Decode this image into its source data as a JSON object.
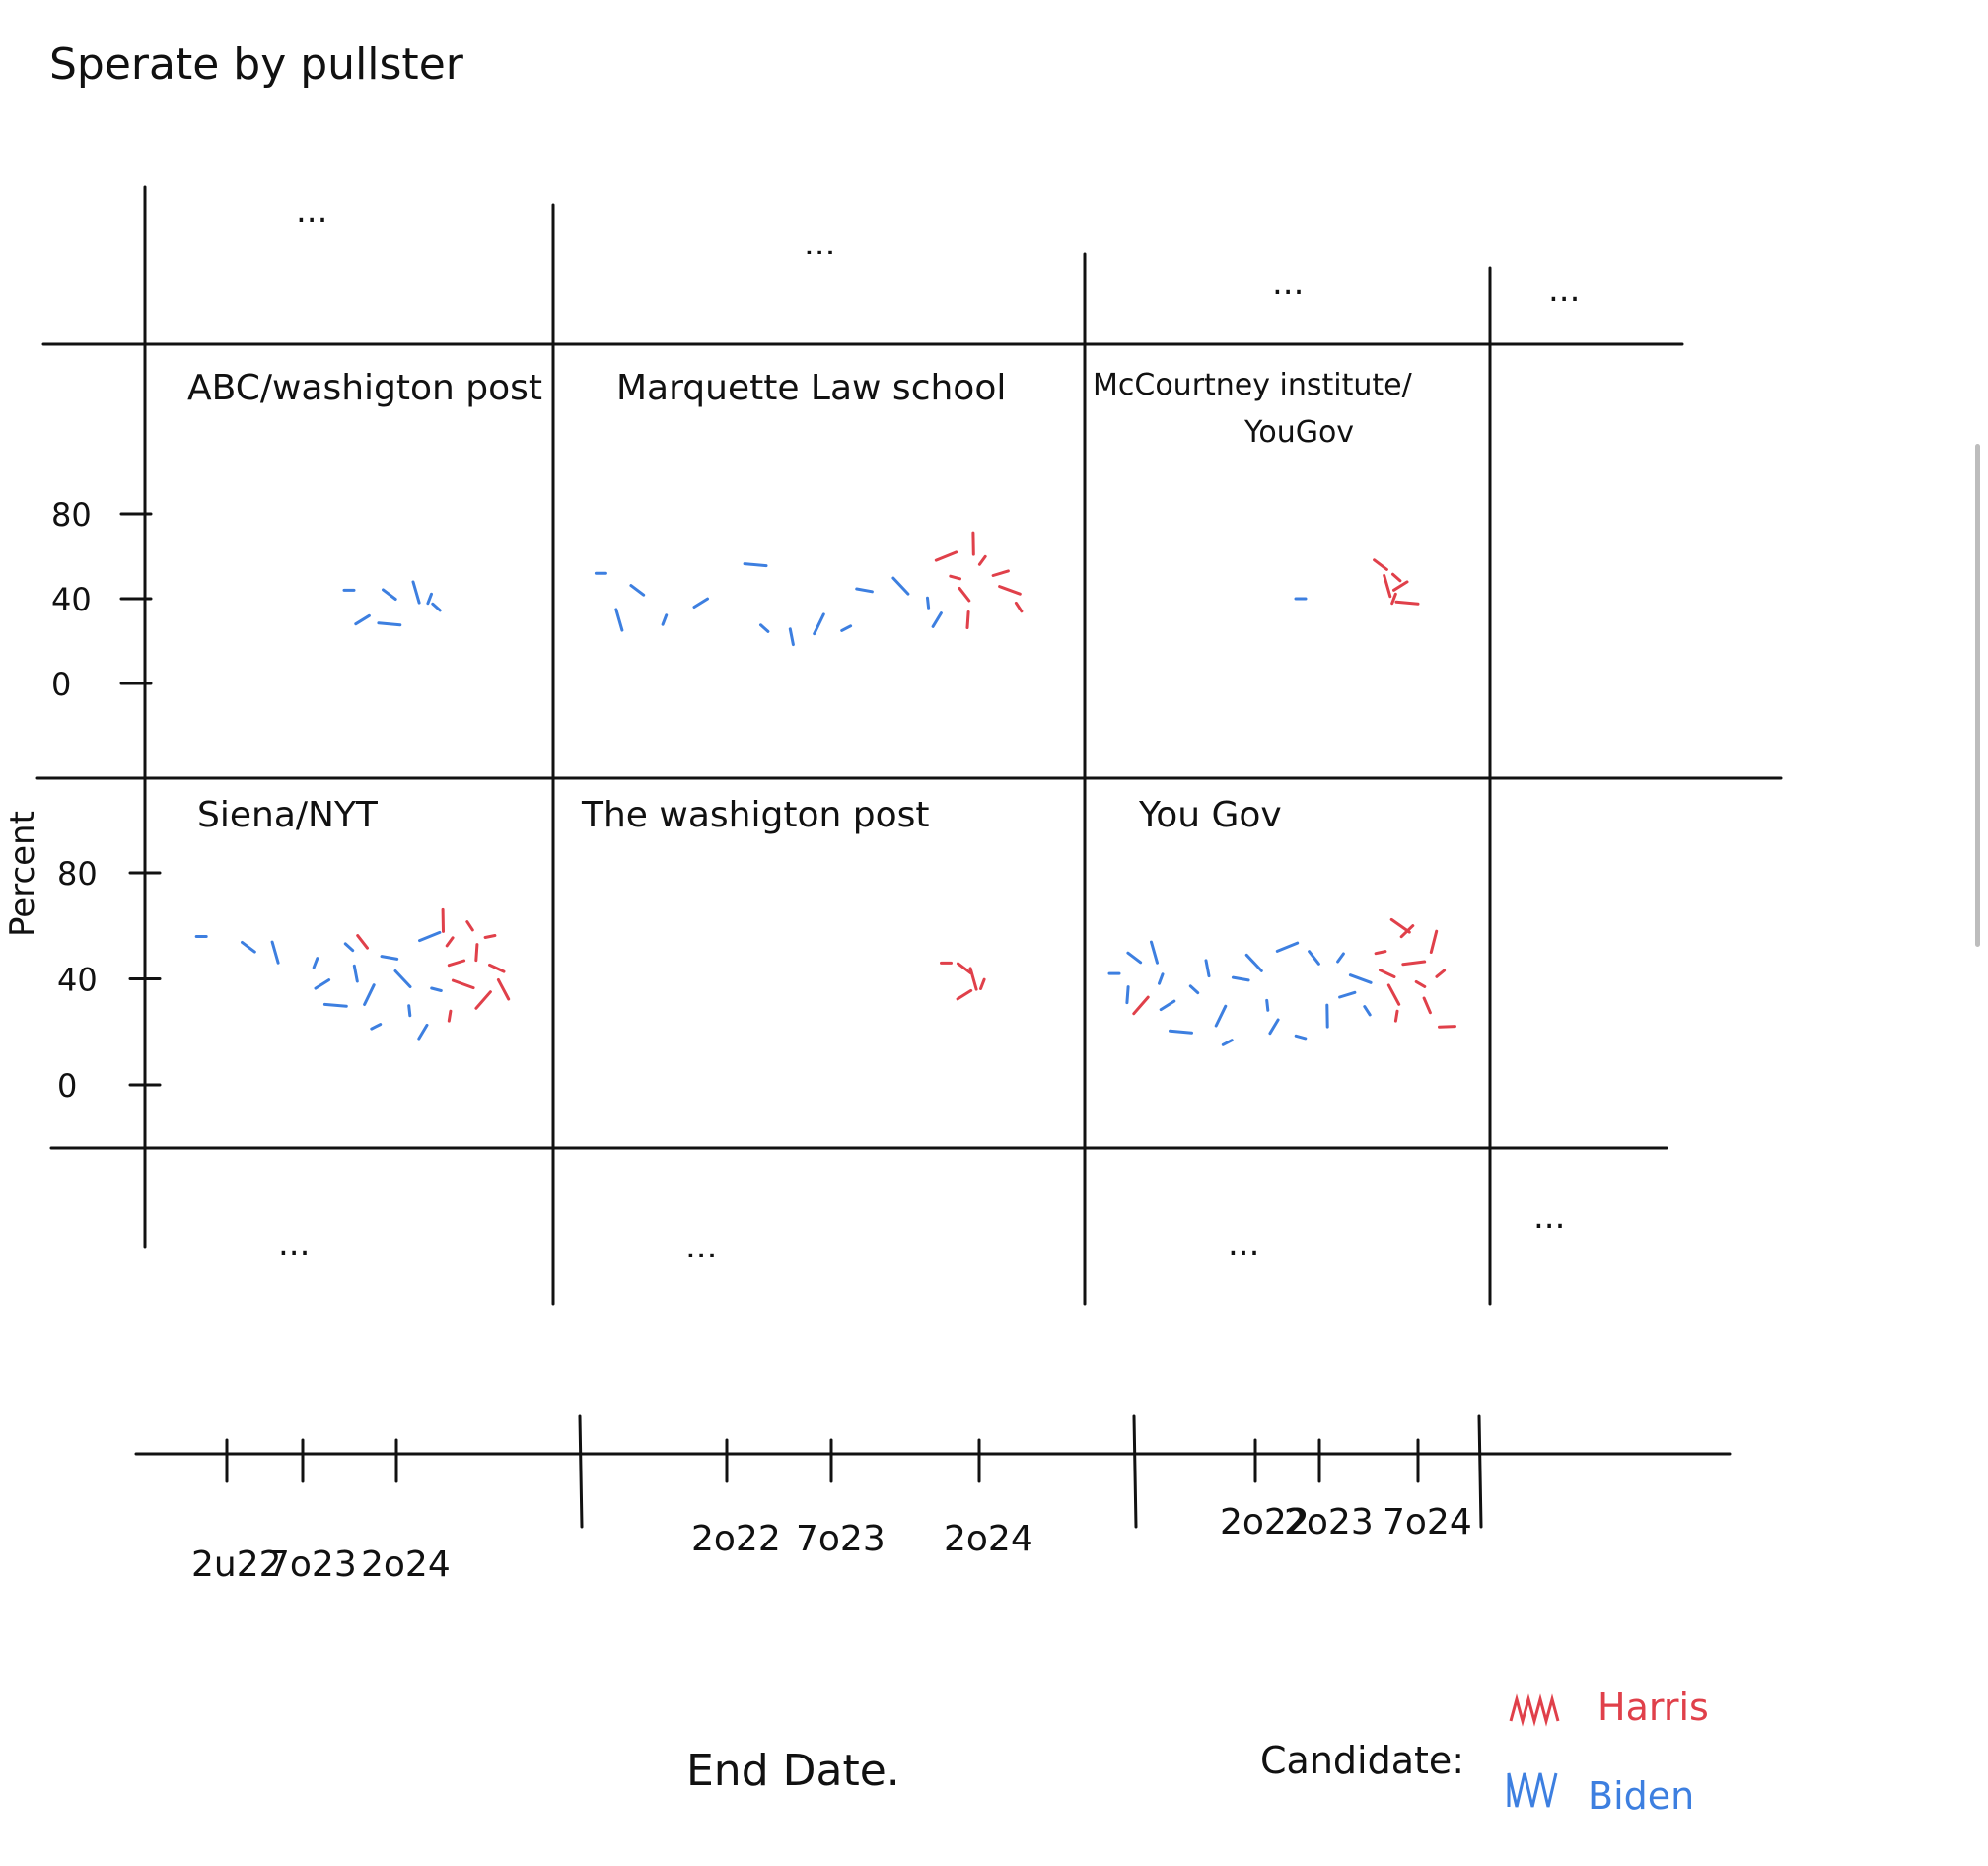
{
  "title": "Sperate by pullster",
  "colors": {
    "harris": "#e0404a",
    "biden": "#3d7fe0",
    "ink": "#111111"
  },
  "chart_data": {
    "type": "scatter",
    "facet_by": "pollster",
    "title": "Sperate by pullster",
    "xlabel": "End Date.",
    "ylabel": "Percent",
    "y_ticks": [
      "80",
      "40",
      "0"
    ],
    "x_ticks": [
      "2022",
      "2023",
      "2024"
    ],
    "x_tick_sets": [
      [
        "2u22",
        "7o23",
        "2o24"
      ],
      [
        "2o22",
        "7o23",
        "2o24"
      ],
      [
        "2o22",
        "2o23",
        "7o24"
      ]
    ],
    "legend": {
      "title": "Candidate:",
      "placement": "bottom-right",
      "entries": [
        {
          "name": "Harris",
          "color": "#e0404a"
        },
        {
          "name": "Biden",
          "color": "#3d7fe0"
        }
      ]
    },
    "ellipsis": "...",
    "panels": [
      {
        "pollster": "ABC/washigton post",
        "points": [
          {
            "c": "Biden",
            "x": 2023.3,
            "y": 44
          },
          {
            "c": "Biden",
            "x": 2023.6,
            "y": 42
          },
          {
            "c": "Biden",
            "x": 2023.8,
            "y": 43
          },
          {
            "c": "Biden",
            "x": 2023.9,
            "y": 40
          },
          {
            "c": "Biden",
            "x": 2023.4,
            "y": 30
          },
          {
            "c": "Biden",
            "x": 2023.6,
            "y": 28
          },
          {
            "c": "Biden",
            "x": 2023.95,
            "y": 36
          }
        ]
      },
      {
        "pollster": "Marquette Law school",
        "points": [
          {
            "c": "Biden",
            "x": 2022.1,
            "y": 52
          },
          {
            "c": "Biden",
            "x": 2022.3,
            "y": 44
          },
          {
            "c": "Biden",
            "x": 2022.2,
            "y": 30
          },
          {
            "c": "Biden",
            "x": 2022.45,
            "y": 30
          },
          {
            "c": "Biden",
            "x": 2022.65,
            "y": 38
          },
          {
            "c": "Biden",
            "x": 2022.95,
            "y": 56
          },
          {
            "c": "Biden",
            "x": 2023.0,
            "y": 26
          },
          {
            "c": "Biden",
            "x": 2023.15,
            "y": 22
          },
          {
            "c": "Biden",
            "x": 2023.3,
            "y": 28
          },
          {
            "c": "Biden",
            "x": 2023.45,
            "y": 26
          },
          {
            "c": "Biden",
            "x": 2023.55,
            "y": 44
          },
          {
            "c": "Biden",
            "x": 2023.75,
            "y": 46
          },
          {
            "c": "Biden",
            "x": 2023.9,
            "y": 38
          },
          {
            "c": "Biden",
            "x": 2023.95,
            "y": 30
          },
          {
            "c": "Harris",
            "x": 2024.0,
            "y": 60
          },
          {
            "c": "Harris",
            "x": 2024.05,
            "y": 50
          },
          {
            "c": "Harris",
            "x": 2024.1,
            "y": 42
          },
          {
            "c": "Harris",
            "x": 2024.15,
            "y": 66
          },
          {
            "c": "Harris",
            "x": 2024.2,
            "y": 58
          },
          {
            "c": "Harris",
            "x": 2024.3,
            "y": 52
          },
          {
            "c": "Harris",
            "x": 2024.35,
            "y": 44
          },
          {
            "c": "Harris",
            "x": 2024.4,
            "y": 36
          },
          {
            "c": "Harris",
            "x": 2024.12,
            "y": 30
          }
        ]
      },
      {
        "pollster": "McCourtney institute/ YouGov",
        "points": [
          {
            "c": "Biden",
            "x": 2023.4,
            "y": 40
          },
          {
            "c": "Harris",
            "x": 2024.0,
            "y": 56
          },
          {
            "c": "Harris",
            "x": 2024.05,
            "y": 46
          },
          {
            "c": "Harris",
            "x": 2024.1,
            "y": 40
          },
          {
            "c": "Harris",
            "x": 2024.15,
            "y": 46
          },
          {
            "c": "Harris",
            "x": 2024.2,
            "y": 38
          },
          {
            "c": "Harris",
            "x": 2024.12,
            "y": 50
          }
        ]
      },
      {
        "pollster": "Siena/NYT",
        "points": [
          {
            "c": "Biden",
            "x": 2022.2,
            "y": 56
          },
          {
            "c": "Biden",
            "x": 2022.55,
            "y": 52
          },
          {
            "c": "Biden",
            "x": 2022.75,
            "y": 50
          },
          {
            "c": "Biden",
            "x": 2023.05,
            "y": 46
          },
          {
            "c": "Biden",
            "x": 2023.1,
            "y": 38
          },
          {
            "c": "Biden",
            "x": 2023.2,
            "y": 30
          },
          {
            "c": "Biden",
            "x": 2023.3,
            "y": 52
          },
          {
            "c": "Biden",
            "x": 2023.35,
            "y": 42
          },
          {
            "c": "Biden",
            "x": 2023.45,
            "y": 34
          },
          {
            "c": "Biden",
            "x": 2023.5,
            "y": 22
          },
          {
            "c": "Biden",
            "x": 2023.6,
            "y": 48
          },
          {
            "c": "Biden",
            "x": 2023.7,
            "y": 40
          },
          {
            "c": "Biden",
            "x": 2023.75,
            "y": 28
          },
          {
            "c": "Biden",
            "x": 2023.85,
            "y": 20
          },
          {
            "c": "Biden",
            "x": 2023.9,
            "y": 56
          },
          {
            "c": "Biden",
            "x": 2023.95,
            "y": 36
          },
          {
            "c": "Harris",
            "x": 2023.4,
            "y": 54
          },
          {
            "c": "Harris",
            "x": 2024.0,
            "y": 62
          },
          {
            "c": "Harris",
            "x": 2024.05,
            "y": 54
          },
          {
            "c": "Harris",
            "x": 2024.1,
            "y": 46
          },
          {
            "c": "Harris",
            "x": 2024.15,
            "y": 38
          },
          {
            "c": "Harris",
            "x": 2024.2,
            "y": 60
          },
          {
            "c": "Harris",
            "x": 2024.25,
            "y": 50
          },
          {
            "c": "Harris",
            "x": 2024.3,
            "y": 32
          },
          {
            "c": "Harris",
            "x": 2024.35,
            "y": 56
          },
          {
            "c": "Harris",
            "x": 2024.4,
            "y": 44
          },
          {
            "c": "Harris",
            "x": 2024.45,
            "y": 36
          },
          {
            "c": "Harris",
            "x": 2024.05,
            "y": 26
          }
        ]
      },
      {
        "pollster": "The washigton post",
        "points": [
          {
            "c": "Harris",
            "x": 2024.0,
            "y": 46
          },
          {
            "c": "Harris",
            "x": 2024.1,
            "y": 44
          },
          {
            "c": "Harris",
            "x": 2024.15,
            "y": 40
          },
          {
            "c": "Harris",
            "x": 2024.2,
            "y": 38
          },
          {
            "c": "Harris",
            "x": 2024.1,
            "y": 34
          }
        ]
      },
      {
        "pollster": "You Gov",
        "points": [
          {
            "c": "Biden",
            "x": 2022.0,
            "y": 42
          },
          {
            "c": "Biden",
            "x": 2022.15,
            "y": 48
          },
          {
            "c": "Biden",
            "x": 2022.3,
            "y": 50
          },
          {
            "c": "Biden",
            "x": 2022.35,
            "y": 40
          },
          {
            "c": "Biden",
            "x": 2022.4,
            "y": 30
          },
          {
            "c": "Biden",
            "x": 2022.5,
            "y": 20
          },
          {
            "c": "Biden",
            "x": 2022.6,
            "y": 36
          },
          {
            "c": "Biden",
            "x": 2022.7,
            "y": 44
          },
          {
            "c": "Biden",
            "x": 2022.8,
            "y": 26
          },
          {
            "c": "Biden",
            "x": 2022.85,
            "y": 16
          },
          {
            "c": "Biden",
            "x": 2022.95,
            "y": 40
          },
          {
            "c": "Biden",
            "x": 2023.05,
            "y": 46
          },
          {
            "c": "Biden",
            "x": 2023.15,
            "y": 30
          },
          {
            "c": "Biden",
            "x": 2023.2,
            "y": 22
          },
          {
            "c": "Biden",
            "x": 2023.3,
            "y": 52
          },
          {
            "c": "Biden",
            "x": 2023.4,
            "y": 18
          },
          {
            "c": "Biden",
            "x": 2023.5,
            "y": 48
          },
          {
            "c": "Biden",
            "x": 2023.6,
            "y": 26
          },
          {
            "c": "Biden",
            "x": 2023.7,
            "y": 48
          },
          {
            "c": "Biden",
            "x": 2023.75,
            "y": 34
          },
          {
            "c": "Biden",
            "x": 2023.85,
            "y": 40
          },
          {
            "c": "Biden",
            "x": 2023.9,
            "y": 28
          },
          {
            "c": "Biden",
            "x": 2022.1,
            "y": 34
          },
          {
            "c": "Harris",
            "x": 2022.2,
            "y": 30
          },
          {
            "c": "Harris",
            "x": 2024.0,
            "y": 50
          },
          {
            "c": "Harris",
            "x": 2024.05,
            "y": 42
          },
          {
            "c": "Harris",
            "x": 2024.1,
            "y": 34
          },
          {
            "c": "Harris",
            "x": 2024.12,
            "y": 26
          },
          {
            "c": "Harris",
            "x": 2024.2,
            "y": 58
          },
          {
            "c": "Harris",
            "x": 2024.25,
            "y": 46
          },
          {
            "c": "Harris",
            "x": 2024.3,
            "y": 38
          },
          {
            "c": "Harris",
            "x": 2024.35,
            "y": 30
          },
          {
            "c": "Harris",
            "x": 2024.4,
            "y": 54
          },
          {
            "c": "Harris",
            "x": 2024.45,
            "y": 42
          },
          {
            "c": "Harris",
            "x": 2024.5,
            "y": 22
          },
          {
            "c": "Harris",
            "x": 2024.15,
            "y": 60
          }
        ]
      }
    ]
  }
}
